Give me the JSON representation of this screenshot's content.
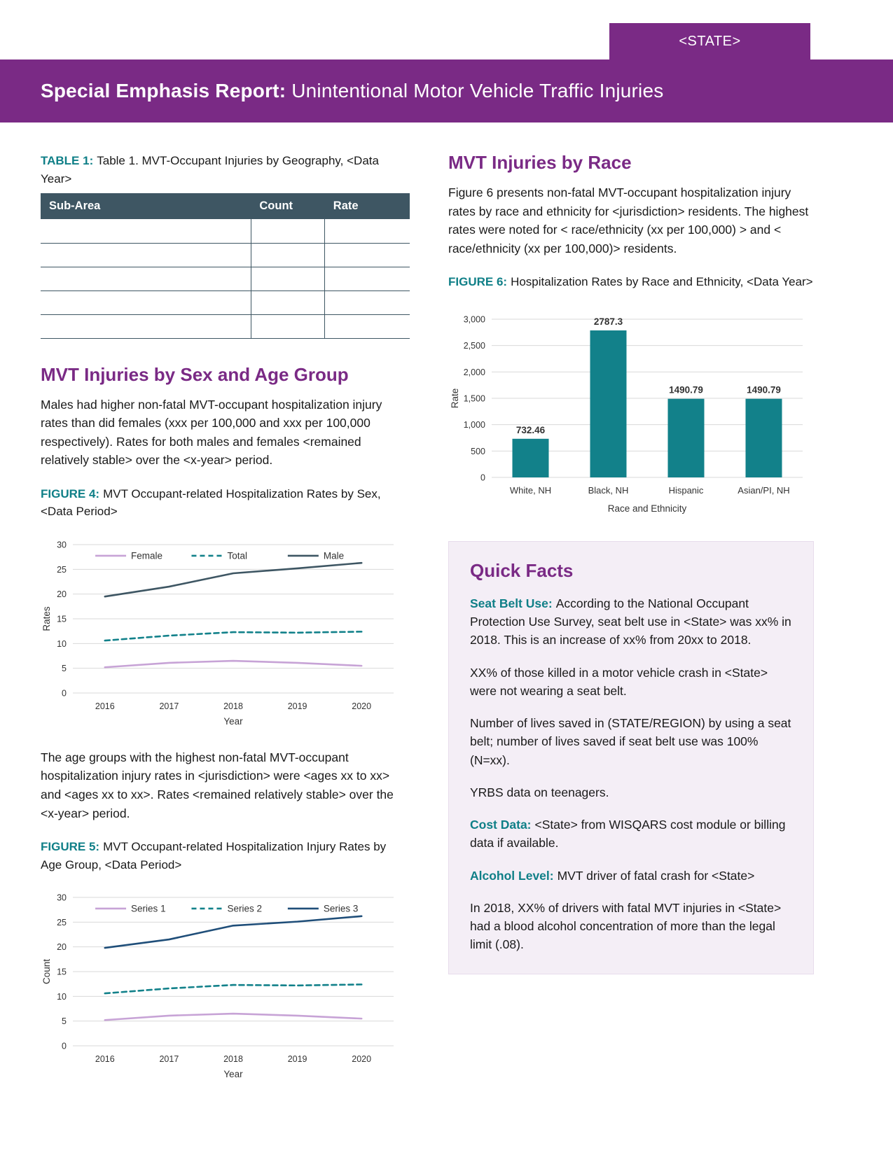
{
  "header": {
    "state_tab": "<STATE>",
    "title_bold": "Special Emphasis Report:",
    "title_rest": "Unintentional Motor Vehicle Traffic Injuries"
  },
  "left": {
    "table1": {
      "label_prefix": "TABLE 1:",
      "label_text": "Table 1. MVT-Occupant Injuries by Geography, <Data Year>",
      "columns": [
        "Sub-Area",
        "Count",
        "Rate"
      ]
    },
    "sex_age": {
      "heading": "MVT Injuries by Sex and Age Group",
      "para1": "Males had higher non-fatal MVT-occupant hospitalization injury rates than did females (xxx per 100,000 and xxx per 100,000 respectively). Rates for both males and females <remained relatively stable> over the <x-year> period.",
      "figure4_prefix": "FIGURE 4:",
      "figure4_text": "MVT Occupant-related Hospitalization Rates by Sex, <Data Period>",
      "para2": "The age groups with the highest non-fatal MVT-occupant hospitalization injury rates in <jurisdiction> were <ages xx to xx> and <ages xx to xx>. Rates <remained relatively stable> over the <x-year> period.",
      "figure5_prefix": "FIGURE 5:",
      "figure5_text": "MVT Occupant-related Hospitalization Injury Rates by Age Group, <Data Period>"
    }
  },
  "right": {
    "race": {
      "heading": "MVT Injuries by Race",
      "para": "Figure 6 presents non-fatal MVT-occupant hospitalization injury rates by race and ethnicity for <jurisdiction> residents. The highest rates were noted for < race/ethnicity (xx per 100,000) > and < race/ethnicity (xx per 100,000)> residents.",
      "figure6_prefix": "FIGURE 6:",
      "figure6_text": "Hospitalization Rates by Race and Ethnicity, <Data Year>"
    },
    "quick_facts": {
      "heading": "Quick Facts",
      "items": [
        {
          "bold": "Seat Belt Use:",
          "text": "According to the National Occupant Protection Use Survey, seat belt use in <State> was xx% in 2018. This is an increase of xx% from 20xx to 2018."
        },
        {
          "bold": "",
          "text": "XX% of those killed in a motor vehicle crash in <State> were not wearing a seat belt."
        },
        {
          "bold": "",
          "text": "Number of lives saved in (STATE/REGION) by using a seat belt; number of lives saved if seat belt use was 100% (N=xx)."
        },
        {
          "bold": "",
          "text": "YRBS data on teenagers."
        },
        {
          "bold": "Cost Data:",
          "text": "<State> from WISQARS cost module or billing data if available."
        },
        {
          "bold": "Alcohol Level:",
          "text": "MVT driver of fatal crash for <State>"
        },
        {
          "bold": "",
          "text": "In 2018, XX% of drivers with fatal MVT injuries in <State> had a blood alcohol concentration of more than the legal limit (.08)."
        }
      ]
    }
  },
  "chart_data": [
    {
      "id": "figure4",
      "type": "line",
      "title": "MVT Occupant-related Hospitalization Rates by Sex, <Data Period>",
      "x": [
        "2016",
        "2017",
        "2018",
        "2019",
        "2020"
      ],
      "xlabel": "Year",
      "ylabel": "Rates",
      "ylim": [
        0,
        30
      ],
      "yticks": [
        0,
        5,
        10,
        15,
        20,
        25,
        30
      ],
      "grid": true,
      "legend_position": "top",
      "series": [
        {
          "name": "Female",
          "values": [
            5.2,
            6.1,
            6.5,
            6.1,
            5.5
          ],
          "color": "#C7A3D6",
          "dash": false
        },
        {
          "name": "Total",
          "values": [
            10.6,
            11.6,
            12.3,
            12.2,
            12.4
          ],
          "color": "#12818A",
          "dash": true
        },
        {
          "name": "Male",
          "values": [
            19.5,
            21.5,
            24.2,
            25.2,
            26.3
          ],
          "color": "#3E5663",
          "dash": false
        }
      ]
    },
    {
      "id": "figure5",
      "type": "line",
      "title": "MVT Occupant-related Hospitalization Injury Rates by Age Group, <Data Period>",
      "x": [
        "2016",
        "2017",
        "2018",
        "2019",
        "2020"
      ],
      "xlabel": "Year",
      "ylabel": "Count",
      "ylim": [
        0,
        30
      ],
      "yticks": [
        0,
        5,
        10,
        15,
        20,
        25,
        30
      ],
      "grid": true,
      "legend_position": "top",
      "series": [
        {
          "name": "Series 1",
          "values": [
            5.2,
            6.1,
            6.5,
            6.1,
            5.5
          ],
          "color": "#C7A3D6",
          "dash": false
        },
        {
          "name": "Series 2",
          "values": [
            10.6,
            11.6,
            12.3,
            12.2,
            12.4
          ],
          "color": "#12818A",
          "dash": true
        },
        {
          "name": "Series 3",
          "values": [
            19.8,
            21.5,
            24.3,
            25.1,
            26.2
          ],
          "color": "#1F4E79",
          "dash": false
        }
      ]
    },
    {
      "id": "figure6",
      "type": "bar",
      "title": "Hospitalization Rates by Race and Ethnicity, <Data Year>",
      "categories": [
        "White, NH",
        "Black, NH",
        "Hispanic",
        "Asian/PI, NH"
      ],
      "values": [
        732.46,
        2787.3,
        1490.79,
        1490.79
      ],
      "value_labels": [
        "732.46",
        "2787.3",
        "1490.79",
        "1490.79"
      ],
      "xlabel": "Race and Ethnicity",
      "ylabel": "Rate",
      "ylim": [
        0,
        3000
      ],
      "ytick_values": [
        0,
        500,
        1000,
        1500,
        2000,
        2500,
        3000
      ],
      "ytick_labels": [
        "0",
        "500",
        "1,000",
        "1,500",
        "2,000",
        "2,500",
        "3,000"
      ],
      "grid": true,
      "bar_color": "#12818A"
    }
  ]
}
